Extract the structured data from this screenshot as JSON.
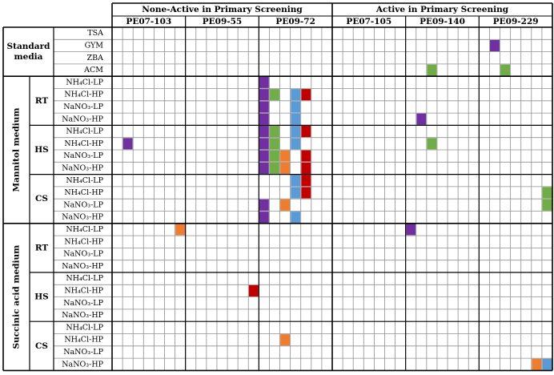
{
  "header": {
    "groups": [
      {
        "label": "None-Active in Primary Screening"
      },
      {
        "label": "Active in Primary Screening"
      }
    ],
    "strains": [
      "PE07-103",
      "PE09-55",
      "PE09-72",
      "PE07-105",
      "PE09-140",
      "PE09-229"
    ]
  },
  "sections": [
    {
      "name": "standard",
      "label_lines": [
        "Standard",
        "media"
      ],
      "rotated": false,
      "blocks": [
        {
          "label": "",
          "rows": [
            "TSA",
            "GYM",
            "ZBA",
            "ACM"
          ]
        }
      ]
    },
    {
      "name": "mannitol",
      "label_lines": [
        "Mannitol medium"
      ],
      "rotated": true,
      "blocks": [
        {
          "label": "RT",
          "rows": [
            "NH₄Cl-LP",
            "NH₄Cl-HP",
            "NaNO₃-LP",
            "NaNO₃-HP"
          ]
        },
        {
          "label": "HS",
          "rows": [
            "NH₄Cl-LP",
            "NH₄Cl-HP",
            "NaNO₃-LP",
            "NaNO₃-HP"
          ]
        },
        {
          "label": "CS",
          "rows": [
            "NH₄Cl-LP",
            "NH₄Cl-HP",
            "NaNO₃-LP",
            "NaNO₃-HP"
          ]
        }
      ]
    },
    {
      "name": "succinic",
      "label_lines": [
        "Succinic acid medium"
      ],
      "rotated": true,
      "blocks": [
        {
          "label": "RT",
          "rows": [
            "NH₄Cl-LP",
            "NH₄Cl-HP",
            "NaNO₃-LP",
            "NaNO₃-HP"
          ]
        },
        {
          "label": "HS",
          "rows": [
            "NH₄Cl-LP",
            "NH₄Cl-HP",
            "NaNO₃-LP",
            "NaNO₃-HP"
          ]
        },
        {
          "label": "CS",
          "rows": [
            "NH₄Cl-LP",
            "NH₄Cl-HP",
            "NaNO₃-LP",
            "NaNO₃-HP"
          ]
        }
      ]
    }
  ],
  "colors": {
    "P": "#7030a0",
    "G": "#70ad47",
    "O": "#ed7d31",
    "B": "#5b9bd5",
    "R": "#c00000"
  },
  "grid": [
    "..........................................",
    "....................................P.....",
    "..........................................",
    "..............................G......G....",
    "..............P...........................",
    "..............PG.BR.......................",
    "..............P..B........................",
    "..............P..B...........P............",
    "..............PG.BR.......................",
    ".P............PG.B............G...........",
    "..............PGO.R.......................",
    "..............PGO.R.......................",
    ".................BR.......................",
    ".................BR......................G",
    "..............P.O........................G",
    "..............P..B........................",
    "......O.....................P.............",
    "..........................................",
    "..........................................",
    "..........................................",
    "..........................................",
    ".............R............................",
    "..........................................",
    "..........................................",
    "..........................................",
    "................O.........................",
    "..........................................",
    "........................................OB"
  ]
}
